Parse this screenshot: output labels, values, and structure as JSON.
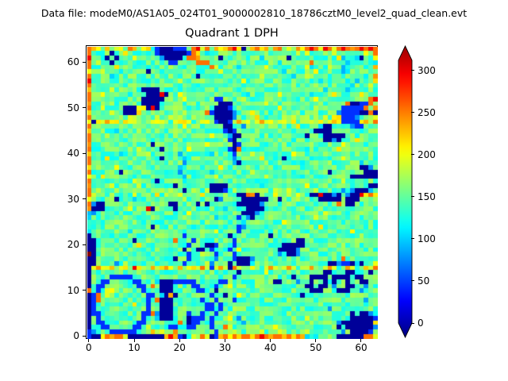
{
  "header": {
    "data_file_label": "Data file: modeM0/AS1A05_024T01_9000002810_18786cztM0_level2_quad_clean.evt"
  },
  "colors": {
    "background": "#ffffff",
    "axis": "#000000"
  },
  "chart_data": {
    "type": "heatmap",
    "title": "Quadrant 1 DPH",
    "xlabel": "",
    "ylabel": "",
    "x_ticks": [
      0,
      10,
      20,
      30,
      40,
      50,
      60
    ],
    "y_ticks": [
      0,
      10,
      20,
      30,
      40,
      50,
      60
    ],
    "x_range": [
      0,
      64
    ],
    "y_range": [
      0,
      64
    ],
    "grid": false,
    "colormap": "jet",
    "colorbar": {
      "ticks": [
        0,
        50,
        100,
        150,
        200,
        250,
        300
      ],
      "extend": "both",
      "position": "right"
    },
    "color_scale_max": 320,
    "value_palette": {
      "N": 8,
      "B": 55,
      "b": 85,
      "c": 112,
      "t": 132,
      "g": 148,
      "G": 165,
      "y": 185,
      "Y": 212,
      "o": 245,
      "r": 285,
      "R": 318
    },
    "grid_rows_top_to_bottom": [
      "oYygYgyYgoYgyYgBNNNBBBgorYogYyYorYNyYoyYgYoyYgYyoroYroYoroYororo",
      "ogtggNggyggtgggBNNNNNNBoYgtggygggggtgggyggtgggygyggtggyggtgggYgo",
      "rggtNgNgggygggggcNNNNcooYggtgNgggyggggtgggygNggGggggtggycggtNggY",
      "ogyggNgggtggggggggBBggggoooggggGggggygggggtggggggogggygggcgggggto",
      "ogggggyggggtggggggyggggygggoYggggtgggggyggggggtgytgggyggcgtggggY",
      "YggygggtgggggNgggggtgggggggggygggggygggggggtggggygygggggctgtgggg",
      "oggggtggggygggggtggggyggNgggggtgggggggyggggggtggGygggtggcggggtgY",
      "rgggygggggggtgggggggyggggggtggggggygggggggGggggggggtgggggcgcgggyo",
      "ogtgggggggygggggGgggggggtgggggggygggggtggggggygygggggtgcggtgggY",
      "YggggyggggggNNNNggggtggggggg yggggggGggggggggygggGggtggggcgggtggg",
      "oggygggg tgggNNNrNggygggggg GggggggtggggggyggggggtggggygggggyggtgY",
      "ogggggtgggggNNNNNggggyggggggBBggggyggggggg tggggggygggggg tgggorogY",
      "YgggtgggggggNNNNggggGggggggg NNNgggggg yggggggtggggggggggoNNBBogo",
      "oggGggggNNNYYNrNgggyggggtgggNNNBgggtggggggyggggGggygggggBBBBBogY",
      "YggggyggNNNYgggggtgggGggggoBNNNNbgggygggggggGgggyggggggbBBBBNNoN",
      "oGgGggGggGygGggGGgygGggGggGgNNNNbGgGgyGgGggGgygGGgGgygYYBBBbgGgY",
      "YNyyYyygyyYygyyYyygyYyygyYyyBNNByYyygyYyygyYyygyyYyygyYyBBBByYyo",
      "oggggggyggggggtggggggyggggggg NNcgbggggtggggggyggggtNNggggbBBgggY",
      "Ygggggtggggygggggg ygggtggggggBNBggggyggggggggggggNNNNggggggtggg",
      "ogggygggggggggggg tggggggggygggcNNgggggggtggggggNgggNNNNNggggggggY",
      "ogggggggggygggggggggggtggggggggBNgggyggggggggtggggggNNbNgggyggggN",
      "YggggtggggggggNgggggggggggygggggNBgggggtgggggggggyggggggygggggggo",
      "oggtgggggggyggggNgggggyggggg tgBNoggggggggggggg tggggggygggggg tgggY",
      "Yggggggtgggggyggggggcggggg tgggcBgggyggggggggygggggtgggggggygggggg",
      "ogggygggggggggg NggggcgggGggggggbgggggyggg Ngggggtggggggygggggg tggY",
      "oggggggggg tgggggggggbggggggygggcNgggggggggggg tgggggyggggggtgggggo",
      "Ygggggygggggggggtgggcggggggggyggggg tgggggggyggggggg tggggggNNbggY",
      "oggggggNggggggggggggbggggg tggggggggyggggggg tgggggggNgggggg NNNNBgg",
      "Yggyggggggggtggggggg cggggggGggggggggg ygggggggtggggggggggNNNNNNY",
      "ogggggggg yggggNgggggcggg tggggggggg tggggggggggygggggggygggggg NNNNNo",
      "YggggGgggggygggggggNgggggggNNNNgggggg tgggggggg ygggggggggggggNNYNNY",
      "ogGgggGggGggGggGggGggNgGggGNNNBgGggGggGggGggGggGggGggGggbgbNNNcg",
      "oygGgyggGgyggGgygGggygGggygGggyggNNoYNgGgyggGgyggNNrNNbNgbNNrYoY",
      "YgggggNgggtggggggggggyggggg NbggggNNNNNNggNgggyggg NNNNNgNNNggggyo",
      "obNNggggggggggggggNNggggNgNggggggNNNNNbggggggggggggggg ogNNggggggY",
      "YNNNgggggygggrNggggNggggggggg tggggNNNNggggygggggggggggggggggygggo",
      "cbggggggtgggggggggggggygggggggggggNNNbgggggggtggggggygggggggggggg",
      "cgggggggggg tgggggggggggggggtggggBgbNgggggggggggggygggggggggggggN",
      "cgggggygggggggggggtgggggggggggggggcggggggg yggggggggggggggg tgggggggN",
      "cgggggggggggggNygggggg tgggggggg Bbggggggggggggggg ygggggggggggggggY",
      "cggggggggtggggggggggggggggggyggggBggggggggggggg tgggggggg yggggggggo",
      "NggggtgggggggggggggggBgggggggggNggggggygNgggggggggggggggggg yggggY",
      "NNggggggg NggggggggogggBggggggggBggg tggggggg NNggggggg ygggggggggggg",
      "NNgggggggggyggggggggg BgggNNBgggBggggggggggNNNNNggggggggy gggggggY",
      "NNggggggggggg tggggggNggNNgBgggBgyggggggggNNNNbgggggggggggggggggo",
      "RNggggggggggggggggggg BggyggBgggBgggggggggbgNNbggggggggggg tgggggY",
      "NNgggggggggggggggg NggBgggggbgggBNNNbgggggggggggggggggggo gggggggg",
      "NNGggGbgGggGggGggGggGBgGggGbgGgNgNNNcGggGggGggGggGgggNNbBBNcNgGY",
      "NyYyyYyyYyrYyyYyyYyyYyyYyoyByYyNoygyYygyYygyYygyyYygyYygyYygyYyo",
      "Nggggggygggggggggggg tggggggggg gNgggggyggggggggggggNNgggNNgggNgggY",
      "NggggBBBBBggggggggggggggggggggg BggggggggggggNgggNNNNgNNNNgNNgggg",
      "NggBBgggggBBgggcNNNBBBBBgggggBBygggggggg NNgggbggNggNgNggNggNNggY",
      "NgBBgggggggBBgogNNNggggBBgggBggygggggyggggggggg NNgNNgbggNNggbggo",
      "ogBgyyGgggggBgggNNNgggggBBggNggygggggggggggggggg NNNgggNNNggbgggY",
      "NBogYygggggg BBgcNYNgggggg BggNggygggggggggggg Ngggggggggggggggggg",
      "NBoggggggggggBgoNNNggtgggBggBggyBgggggggggggggggg gggggggggggcgggY",
      "NBggggggggyggBggNNNgggggg BBgBggygggggggg tgggggggggggggggggggggggo",
      "NBggtggggggggBggNNNgggggg BBgBggyggggygggggggggggggg bgggtggggggY",
      "NBBgggggggggBBocNNNgggBggBggBggygggggggggggg tggggggggggg NgNNbggY",
      "NgBgggggggggBggcNNNgggNBBBgBgggygbggggggggggggg ygggggggg NNNNNBgg",
      "NgBBgggggggBBgggggggogNBBggBgggyggcgggggggggggggGggggggbNNNNNNNY",
      "NggBBgggggBBgYggggBBccBBgggBggoygggggggggygggggg ggggggNgNNNNNNbo",
      "BbgggBBBBBBggyYyyyyYggggg ggBgggyygygyygygyygygyygtggtggbgNNNNBgo",
      "BNNYoYooYNNNNNNNNYrYBNcYyoYNBYoYoYooYoroYooYoYoYtgtgtgtNNNNNNooY"
    ]
  }
}
